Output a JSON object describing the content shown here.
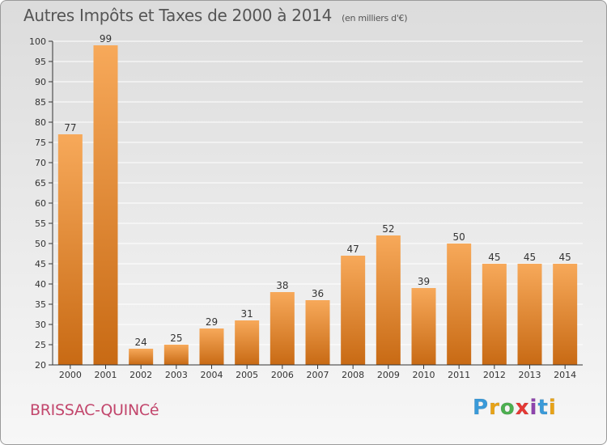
{
  "header": {
    "title": "Autres Impôts et Taxes de 2000 à 2014",
    "unit": "(en milliers d'€)"
  },
  "footer": {
    "location": "BRISSAC-QUINCé",
    "brand": "Proxiti",
    "brand_colors": [
      "#3a9ad9",
      "#e8a317",
      "#4caf50",
      "#e53935",
      "#8e44ad",
      "#3a9ad9",
      "#e8a317"
    ]
  },
  "colors": {
    "bar_light": "#f7a95a",
    "bar_dark": "#c86a14",
    "axis": "#333333",
    "grid": "#ffffff"
  },
  "chart_data": {
    "type": "bar",
    "title": "Autres Impôts et Taxes de 2000 à 2014",
    "subtitle": "(en milliers d'€)",
    "xlabel": "",
    "ylabel": "",
    "categories": [
      "2000",
      "2001",
      "2002",
      "2003",
      "2004",
      "2005",
      "2006",
      "2007",
      "2008",
      "2009",
      "2010",
      "2011",
      "2012",
      "2013",
      "2014"
    ],
    "values": [
      77,
      99,
      24,
      25,
      29,
      31,
      38,
      36,
      47,
      52,
      39,
      50,
      45,
      45,
      45
    ],
    "ylim": [
      20,
      100
    ],
    "yticks": [
      20,
      25,
      30,
      35,
      40,
      45,
      50,
      55,
      60,
      65,
      70,
      75,
      80,
      85,
      90,
      95,
      100
    ],
    "grid": true,
    "data_labels": true
  }
}
